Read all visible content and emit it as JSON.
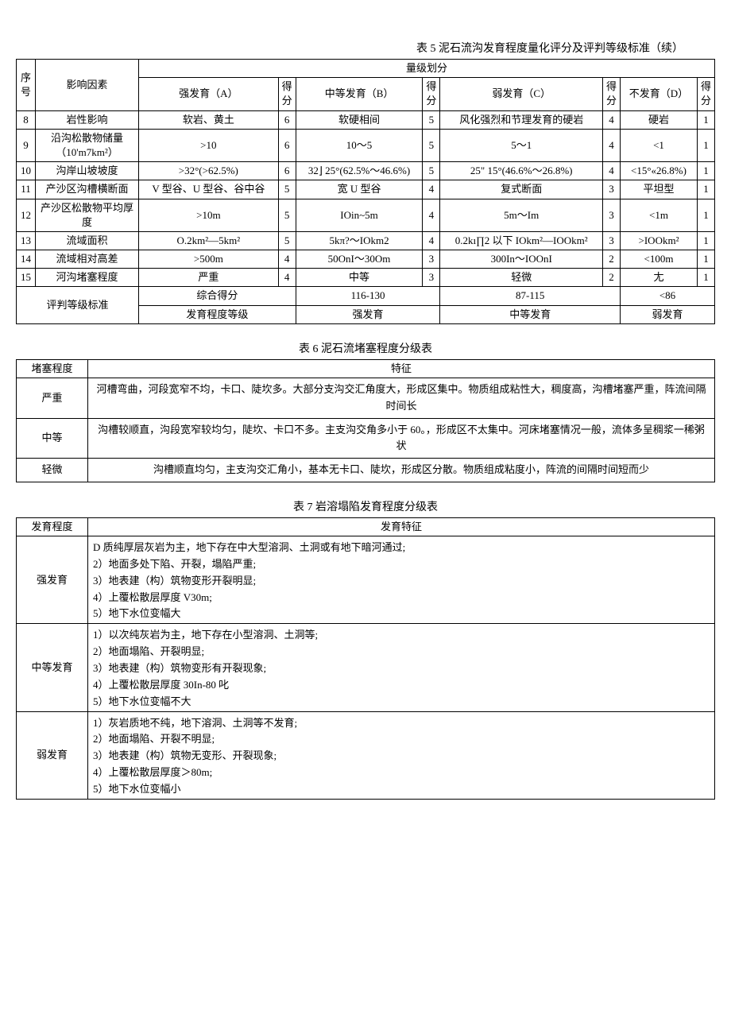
{
  "table5": {
    "title": "表 5 泥石流沟发育程度量化评分及评判等级标准（续）",
    "headers": {
      "seq": "序号",
      "factor": "影响因素",
      "grading": "量级划分",
      "strongA": "强发育（A）",
      "score": "得分",
      "mediumB": "中等发育（B）",
      "weakC": "弱发育（C）",
      "noneD": "不发育（D）"
    },
    "rows": [
      {
        "seq": "8",
        "factor": "岩性影响",
        "a": "软岩、黄土",
        "sa": "6",
        "b": "软硬相间",
        "sb": "5",
        "c": "风化强烈和节理发育的硬岩",
        "sc": "4",
        "d": "硬岩",
        "sd": "1"
      },
      {
        "seq": "9",
        "factor": "沿沟松散物储量（10'm7km²）",
        "a": ">10",
        "sa": "6",
        "b": "10～5",
        "sb": "5",
        "c": "5～1",
        "sc": "4",
        "d": "<1",
        "sd": "1"
      },
      {
        "seq": "10",
        "factor": "沟岸山坡坡度",
        "a": ">32°(>62.5%)",
        "sa": "6",
        "b": "32⌋ 25°(62.5%～46.6%)",
        "sb": "5",
        "c": "25\" 15°(46.6%～26.8%)",
        "sc": "4",
        "d": "<15°«26.8%)",
        "sd": "1"
      },
      {
        "seq": "11",
        "factor": "产沙区沟槽横断面",
        "a": "V 型谷、U 型谷、谷中谷",
        "sa": "5",
        "b": "宽 U 型谷",
        "sb": "4",
        "c": "复式断面",
        "sc": "3",
        "d": "平坦型",
        "sd": "1"
      },
      {
        "seq": "12",
        "factor": "产沙区松散物平均厚度",
        "a": ">10m",
        "sa": "5",
        "b": "IOin~5m",
        "sb": "4",
        "c": "5m～Im",
        "sc": "3",
        "d": "<1m",
        "sd": "1"
      },
      {
        "seq": "13",
        "factor": "流域面积",
        "a": "O.2km²—5km²",
        "sa": "5",
        "b": "5kπ?～IOkm2",
        "sb": "4",
        "c": "0.2kı∏2 以下 IOkm²—IOOkm²",
        "sc": "3",
        "d": ">IOOkm²",
        "sd": "1"
      },
      {
        "seq": "14",
        "factor": "流域相对高差",
        "a": ">500m",
        "sa": "4",
        "b": "50OnI～30Om",
        "sb": "3",
        "c": "300In～IOOnI",
        "sc": "2",
        "d": "<100m",
        "sd": "1"
      },
      {
        "seq": "15",
        "factor": "河沟堵塞程度",
        "a": "严重",
        "sa": "4",
        "b": "中等",
        "sb": "3",
        "c": "轻微",
        "sc": "2",
        "d": "尢",
        "sd": "1"
      }
    ],
    "footer": {
      "label": "评判等级标准",
      "scoreLabel": "综合得分",
      "gradeLabel": "发育程度等级",
      "range1": "116-130",
      "range2": "87-115",
      "range3": "<86",
      "grade1": "强发育",
      "grade2": "中等发育",
      "grade3": "弱发育"
    }
  },
  "table6": {
    "title": "表 6 泥石流堵塞程度分级表",
    "headers": {
      "level": "堵塞程度",
      "feature": "特征"
    },
    "rows": [
      {
        "level": "严重",
        "feature": "河槽弯曲，河段宽窄不均，卡口、陡坎多。大部分支沟交汇角度大，形成区集中。物质组成粘性大，稠度高，沟槽堵塞严重，阵流间隔时间长"
      },
      {
        "level": "中等",
        "feature": "沟槽较顺直，沟段宽窄较均匀，陡坎、卡口不多。主支沟交角多小于 60。，形成区不太集中。河床堵塞情况一般，流体多呈稠浆一稀粥状"
      },
      {
        "level": "轻微",
        "feature": "沟槽顺直均匀，主支沟交汇角小，基本无卡口、陡坎，形成区分散。物质组成粘度小，阵流的间隔时间短而少"
      }
    ]
  },
  "table7": {
    "title": "表 7 岩溶塌陷发育程度分级表",
    "headers": {
      "level": "发育程度",
      "feature": "发育特征"
    },
    "rows": [
      {
        "level": "强发育",
        "features": [
          "D 质纯厚层灰岩为主，地下存在中大型溶洞、土洞或有地下暗河通过;",
          "2）地面多处下陷、开裂，塌陷严重;",
          "3）地表建（构）筑物变形开裂明显;",
          "4）上覆松散层厚度 V30m;",
          "5）地下水位变幅大"
        ]
      },
      {
        "level": "中等发育",
        "features": [
          "1）以次纯灰岩为主，地下存在小型溶洞、土洞等;",
          "2）地面塌陷、开裂明显;",
          "3）地表建（构）筑物变形有开裂现象;",
          "4）上覆松散层厚度 30In-80 叱",
          "5）地下水位变幅不大"
        ]
      },
      {
        "level": "弱发育",
        "features": [
          "1）灰岩质地不纯，地下溶洞、土洞等不发育;",
          "2）地面塌陷、开裂不明显;",
          "3）地表建（构）筑物无变形、开裂现象;",
          "4）上覆松散层厚度＞80m;",
          "5）地下水位变幅小"
        ]
      }
    ]
  }
}
